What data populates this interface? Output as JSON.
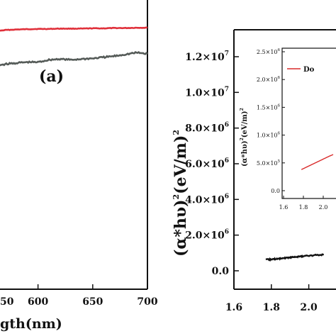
{
  "chart_data": [
    {
      "type": "line",
      "panel_label": "(a)",
      "xlabel": "gth(nm)",
      "x_ticks": [
        "50",
        "600",
        "650",
        "700"
      ],
      "xlim": [
        540,
        700
      ],
      "ylim": [
        0,
        100
      ],
      "grid": false,
      "series": [
        {
          "color": "#e0303a",
          "x": [
            540,
            550,
            560,
            570,
            580,
            590,
            600,
            610,
            620,
            630,
            640,
            650,
            660,
            670,
            680,
            690,
            700
          ],
          "y": [
            87.5,
            88.4,
            89.2,
            89.6,
            89.8,
            89.9,
            90.0,
            90.0,
            90.1,
            90.1,
            90.1,
            90.2,
            90.2,
            90.3,
            90.3,
            90.4,
            90.4
          ]
        },
        {
          "color": "#555b58",
          "x": [
            540,
            550,
            560,
            570,
            580,
            590,
            600,
            610,
            620,
            630,
            640,
            650,
            660,
            670,
            680,
            690,
            700
          ],
          "y": [
            75.5,
            76.3,
            77.2,
            77.8,
            78.2,
            78.5,
            78.5,
            79.3,
            79.6,
            79.3,
            79.6,
            79.8,
            80.2,
            80.6,
            81.2,
            81.8,
            81.4
          ]
        }
      ]
    },
    {
      "type": "line",
      "ylabel_main": "(α*hυ)",
      "ylabel_sup": "2",
      "ylabel_unit": "(eV/m)",
      "ylabel_unit_sup": "2",
      "xlim": [
        1.6,
        2.1
      ],
      "ylim": [
        -1200000,
        13000000
      ],
      "x_ticks": [
        {
          "v": 1.6,
          "label": "1.6"
        },
        {
          "v": 1.8,
          "label": "1.8"
        },
        {
          "v": 2.0,
          "label": "2.0"
        },
        {
          "v": 2.2,
          "label": "2"
        }
      ],
      "y_ticks": [
        {
          "v": 0,
          "label": "0.0"
        },
        {
          "v": 2000000,
          "label": "2.0×10",
          "exp": "6"
        },
        {
          "v": 4000000,
          "label": "4.0×10",
          "exp": "6"
        },
        {
          "v": 6000000,
          "label": "6.0×10",
          "exp": "6"
        },
        {
          "v": 8000000,
          "label": "8.0×10",
          "exp": "6"
        },
        {
          "v": 10000000,
          "label": "1.0×10",
          "exp": "7"
        },
        {
          "v": 12000000,
          "label": "1.2×10",
          "exp": "7"
        }
      ],
      "series": [
        {
          "color": "#111111",
          "x": [
            1.77,
            1.8,
            1.83,
            1.86,
            1.89,
            1.92,
            1.95,
            1.98,
            2.01,
            2.04,
            2.08
          ],
          "y": [
            620000,
            640000,
            670000,
            700000,
            740000,
            770000,
            800000,
            830000,
            850000,
            880000,
            900000
          ]
        }
      ]
    },
    {
      "type": "line",
      "role": "inset",
      "ylabel_main": "(α*hυ)",
      "ylabel_sup": "2",
      "ylabel_unit": "(eV/m)",
      "ylabel_unit_sup": "2",
      "xlim": [
        1.6,
        2.1
      ],
      "ylim": [
        0,
        2500000
      ],
      "x_ticks": [
        {
          "v": 1.6,
          "label": "1.6"
        },
        {
          "v": 1.8,
          "label": "1.8"
        },
        {
          "v": 2.0,
          "label": "2.0"
        },
        {
          "v": 2.2,
          "label": "2"
        }
      ],
      "y_ticks": [
        {
          "v": 0,
          "label": "0.0"
        },
        {
          "v": 500000,
          "label": "5.0×10",
          "exp": "5"
        },
        {
          "v": 1000000,
          "label": "1.0×10",
          "exp": "6"
        },
        {
          "v": 1500000,
          "label": "1.5×10",
          "exp": "6"
        },
        {
          "v": 2000000,
          "label": "2.0×10",
          "exp": "6"
        },
        {
          "v": 2500000,
          "label": "2.5×10",
          "exp": "6"
        }
      ],
      "legend": "Do",
      "series": [
        {
          "name": "Do",
          "color": "#d92b2b",
          "x": [
            1.78,
            1.85,
            1.92,
            1.99,
            2.06,
            2.1
          ],
          "y": [
            380000,
            440000,
            500000,
            560000,
            620000,
            650000
          ]
        }
      ]
    }
  ]
}
